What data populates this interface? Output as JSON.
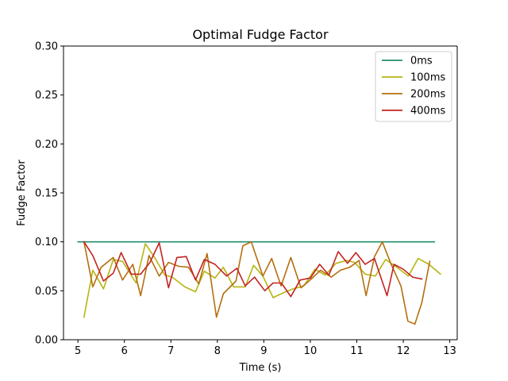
{
  "chart_data": {
    "type": "line",
    "title": "Optimal Fudge Factor",
    "xlabel": "Time (s)",
    "ylabel": "Fudge Factor",
    "xlim": [
      4.69,
      13.16
    ],
    "ylim": [
      0.0,
      0.3
    ],
    "xticks": [
      5,
      6,
      7,
      8,
      9,
      10,
      11,
      12,
      13
    ],
    "xtick_labels": [
      "5",
      "6",
      "7",
      "8",
      "9",
      "10",
      "11",
      "12",
      "13"
    ],
    "yticks": [
      0.0,
      0.05,
      0.1,
      0.15,
      0.2,
      0.25,
      0.3
    ],
    "ytick_labels": [
      "0.00",
      "0.05",
      "0.10",
      "0.15",
      "0.20",
      "0.25",
      "0.30"
    ],
    "grid": false,
    "legend_position": "top-right",
    "series": [
      {
        "name": "0ms",
        "color": "#1f8f6f",
        "x": [
          5.0,
          12.67
        ],
        "y": [
          0.1,
          0.1
        ]
      },
      {
        "name": "100ms",
        "color": "#b5b512",
        "x": [
          5.13,
          5.32,
          5.55,
          5.76,
          5.96,
          6.25,
          6.45,
          6.65,
          6.87,
          7.03,
          7.3,
          7.53,
          7.72,
          7.95,
          8.13,
          8.35,
          8.6,
          8.78,
          8.98,
          9.2,
          9.42,
          9.63,
          9.86,
          10.1,
          10.32,
          10.55,
          10.78,
          10.95,
          11.18,
          11.4,
          11.62,
          11.86,
          12.11,
          12.32,
          12.55,
          12.8
        ],
        "y": [
          0.023,
          0.071,
          0.052,
          0.082,
          0.08,
          0.058,
          0.098,
          0.084,
          0.066,
          0.064,
          0.054,
          0.049,
          0.07,
          0.063,
          0.074,
          0.054,
          0.054,
          0.076,
          0.065,
          0.043,
          0.048,
          0.052,
          0.055,
          0.072,
          0.066,
          0.078,
          0.081,
          0.079,
          0.067,
          0.065,
          0.082,
          0.074,
          0.065,
          0.083,
          0.077,
          0.067
        ]
      },
      {
        "name": "200ms",
        "color": "#b46e0e",
        "x": [
          5.13,
          5.32,
          5.5,
          5.76,
          5.96,
          6.18,
          6.35,
          6.53,
          6.75,
          6.95,
          7.17,
          7.38,
          7.6,
          7.78,
          7.98,
          8.13,
          8.4,
          8.55,
          8.73,
          8.98,
          9.17,
          9.37,
          9.58,
          9.8,
          10.02,
          10.22,
          10.45,
          10.65,
          10.85,
          11.05,
          11.2,
          11.38,
          11.55,
          11.73,
          11.95,
          12.1,
          12.25,
          12.4,
          12.57
        ],
        "y": [
          0.1,
          0.054,
          0.074,
          0.084,
          0.061,
          0.077,
          0.045,
          0.086,
          0.065,
          0.079,
          0.075,
          0.074,
          0.057,
          0.088,
          0.023,
          0.047,
          0.06,
          0.096,
          0.1,
          0.065,
          0.083,
          0.055,
          0.084,
          0.053,
          0.062,
          0.071,
          0.064,
          0.071,
          0.074,
          0.081,
          0.045,
          0.085,
          0.1,
          0.078,
          0.055,
          0.019,
          0.016,
          0.038,
          0.08
        ]
      },
      {
        "name": "400ms",
        "color": "#c42222",
        "x": [
          5.13,
          5.32,
          5.55,
          5.76,
          5.93,
          6.15,
          6.35,
          6.55,
          6.75,
          6.95,
          7.13,
          7.33,
          7.53,
          7.72,
          7.95,
          8.2,
          8.42,
          8.6,
          8.8,
          9.02,
          9.2,
          9.38,
          9.58,
          9.78,
          10.0,
          10.2,
          10.4,
          10.6,
          10.8,
          10.98,
          11.18,
          11.38,
          11.65,
          11.8,
          12.0,
          12.2,
          12.4
        ],
        "y": [
          0.1,
          0.086,
          0.06,
          0.068,
          0.089,
          0.067,
          0.067,
          0.079,
          0.099,
          0.053,
          0.084,
          0.085,
          0.061,
          0.082,
          0.077,
          0.065,
          0.073,
          0.055,
          0.064,
          0.05,
          0.058,
          0.058,
          0.044,
          0.061,
          0.063,
          0.077,
          0.066,
          0.09,
          0.078,
          0.089,
          0.077,
          0.083,
          0.045,
          0.077,
          0.072,
          0.064,
          0.062
        ]
      }
    ]
  }
}
